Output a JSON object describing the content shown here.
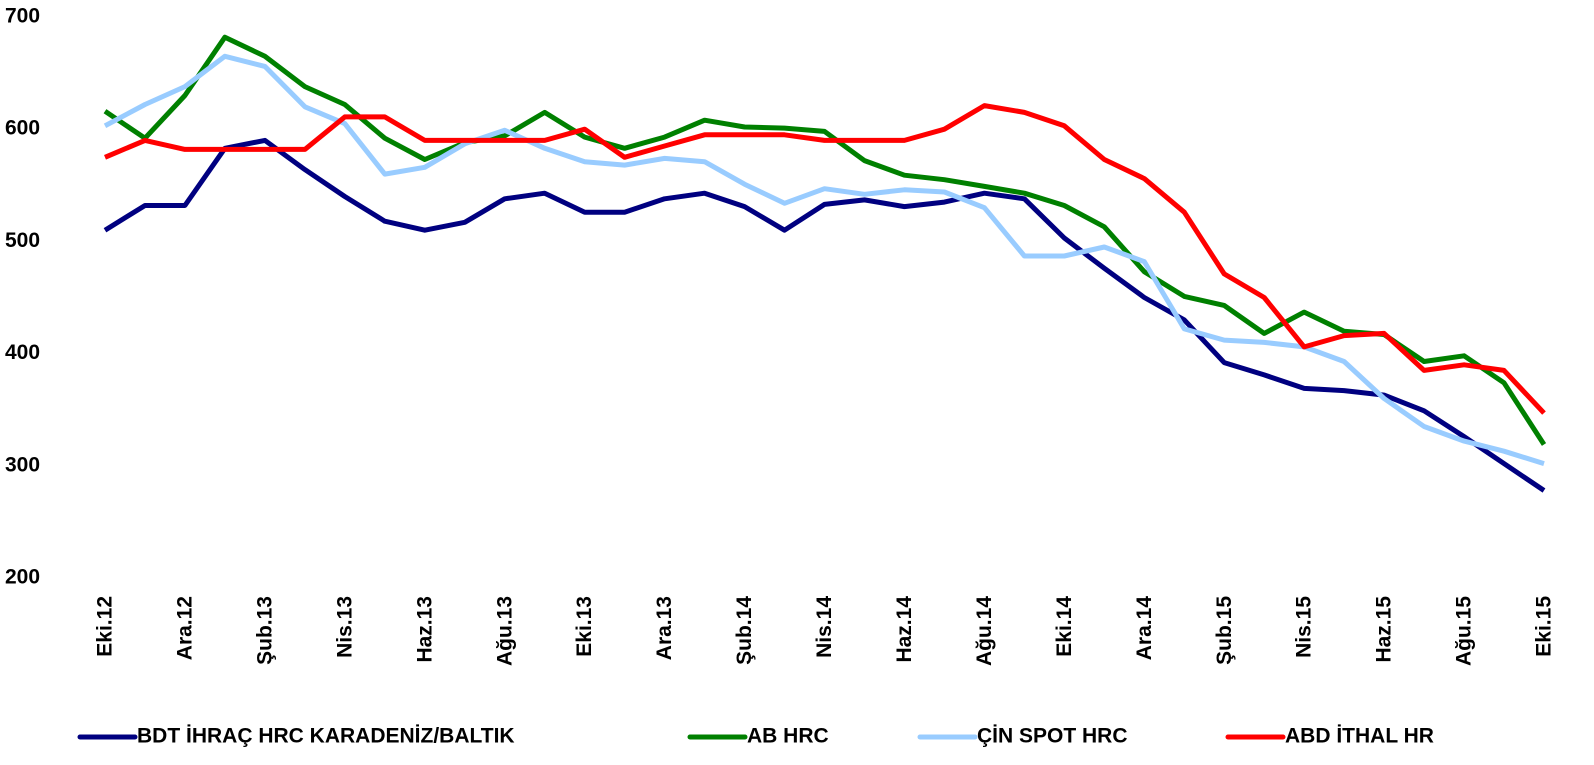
{
  "chart_data": {
    "type": "line",
    "categories": [
      "Eki.12",
      null,
      "Ara.12",
      null,
      "Şub.13",
      null,
      "Nis.13",
      null,
      "Haz.13",
      null,
      "Ağu.13",
      null,
      "Eki.13",
      null,
      "Ara.13",
      null,
      "Şub.14",
      null,
      "Nis.14",
      null,
      "Haz.14",
      null,
      "Ağu.14",
      null,
      "Eki.14",
      null,
      "Ara.14",
      null,
      "Şub.15",
      null,
      "Nis.15",
      null,
      "Haz.15",
      null,
      "Ağu.15",
      null,
      "Eki.15"
    ],
    "series": [
      {
        "name": "BDT İHRAÇ HRC KARADENİZ/BALTIK",
        "color": "#000080",
        "values": [
          510,
          532,
          532,
          583,
          590,
          564,
          540,
          518,
          510,
          517,
          538,
          543,
          526,
          526,
          538,
          543,
          531,
          510,
          533,
          537,
          531,
          535,
          543,
          538,
          503,
          476,
          450,
          430,
          392,
          381,
          369,
          367,
          363,
          349,
          326,
          302,
          278
        ]
      },
      {
        "name": "AB HRC",
        "color": "#008000",
        "values": [
          616,
          592,
          630,
          682,
          665,
          638,
          622,
          592,
          573,
          588,
          594,
          615,
          593,
          583,
          593,
          608,
          602,
          601,
          598,
          572,
          559,
          555,
          549,
          543,
          532,
          513,
          473,
          451,
          443,
          418,
          437,
          420,
          417,
          393,
          398,
          374,
          319
        ]
      },
      {
        "name": "ÇİN SPOT HRC",
        "color": "#99ccff",
        "values": [
          603,
          622,
          638,
          665,
          656,
          620,
          605,
          560,
          566,
          587,
          599,
          583,
          571,
          568,
          574,
          571,
          551,
          534,
          547,
          542,
          546,
          544,
          530,
          487,
          487,
          495,
          482,
          422,
          412,
          410,
          406,
          393,
          360,
          335,
          322,
          313,
          302
        ]
      },
      {
        "name": "ABD İTHAL HR",
        "color": "#ff0000",
        "values": [
          575,
          590,
          582,
          582,
          582,
          582,
          611,
          611,
          590,
          590,
          590,
          590,
          600,
          575,
          585,
          595,
          595,
          595,
          590,
          590,
          590,
          600,
          621,
          615,
          603,
          573,
          556,
          526,
          471,
          450,
          406,
          416,
          418,
          385,
          390,
          385,
          347
        ]
      }
    ],
    "ylim": [
      200,
      700
    ],
    "yticks": [
      200,
      300,
      400,
      500,
      600,
      700
    ],
    "grid": false,
    "legend": "bottom"
  }
}
